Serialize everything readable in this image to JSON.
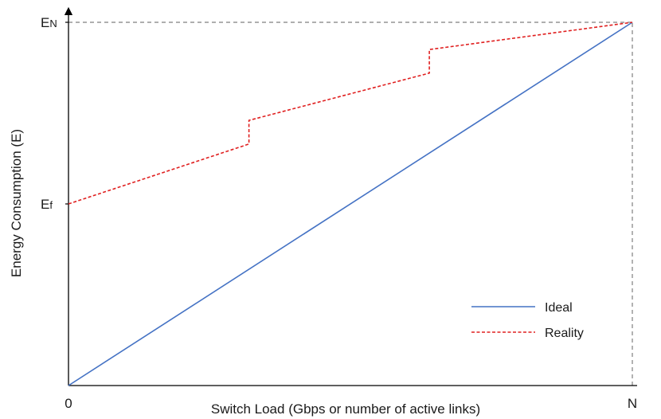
{
  "chart_data": {
    "type": "line",
    "title": "",
    "xlabel": "Switch Load (Gbps or number of active links)",
    "ylabel": "Energy Consumption (E)",
    "x_ticks": [
      {
        "label": "0",
        "value": 0
      },
      {
        "label": "N",
        "value": 1
      }
    ],
    "y_ticks": [
      {
        "label": "Ef",
        "main": "E",
        "sub": "f",
        "value": 0.5
      },
      {
        "label": "EN",
        "main": "E",
        "sub": "N",
        "value": 1
      }
    ],
    "xlim": [
      0,
      1
    ],
    "ylim": [
      0,
      1
    ],
    "grid": false,
    "legend_position": "bottom-right",
    "reference_lines": [
      {
        "orientation": "horizontal",
        "at": 1,
        "style": "dashed",
        "color": "#7f7f7f"
      },
      {
        "orientation": "vertical",
        "at": 1,
        "style": "dashed",
        "color": "#7f7f7f"
      }
    ],
    "series": [
      {
        "name": "Ideal",
        "color": "#4472c4",
        "style": "solid",
        "points": [
          [
            0,
            0
          ],
          [
            1,
            1
          ]
        ]
      },
      {
        "name": "Reality",
        "color": "#e02020",
        "style": "dashed",
        "points": [
          [
            0,
            0.5
          ],
          [
            0.32,
            0.665
          ],
          [
            0.32,
            0.73
          ],
          [
            0.64,
            0.86
          ],
          [
            0.64,
            0.925
          ],
          [
            1,
            1
          ]
        ]
      }
    ]
  }
}
